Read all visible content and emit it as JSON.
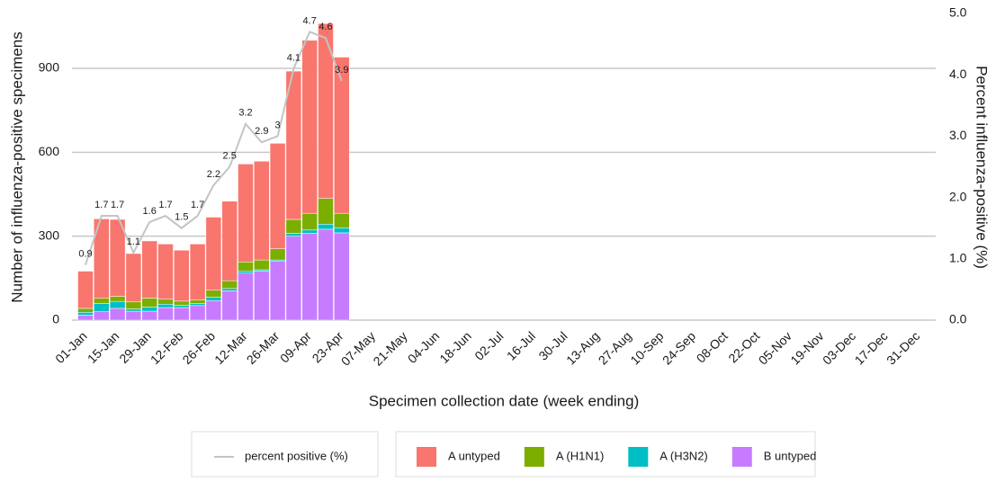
{
  "chart_data": {
    "type": "bar",
    "x_label": "Specimen collection date (week ending)",
    "y_label": "Number of influenza-positive specimens",
    "y2_label": "Percent influenza-positive (%)",
    "categories": [
      "01-Jan",
      null,
      "15-Jan",
      null,
      "29-Jan",
      null,
      "12-Feb",
      null,
      "26-Feb",
      null,
      "12-Mar",
      null,
      "26-Mar",
      null,
      "09-Apr",
      null,
      "23-Apr",
      null,
      "07-May",
      null,
      "21-May",
      null,
      "04-Jun",
      null,
      "18-Jun",
      null,
      "02-Jul",
      null,
      "16-Jul",
      null,
      "30-Jul",
      null,
      "13-Aug",
      null,
      "27-Aug",
      null,
      "10-Sep",
      null,
      "24-Sep",
      null,
      "08-Oct",
      null,
      "22-Oct",
      null,
      "05-Nov",
      null,
      "19-Nov",
      null,
      "03-Dec",
      null,
      "17-Dec",
      null,
      "31-Dec"
    ],
    "series": [
      {
        "name": "percent positive (%)",
        "type": "line",
        "axis": "y2",
        "color": "#c4c4c4",
        "values": [
          0.9,
          1.7,
          1.7,
          1.1,
          1.6,
          1.7,
          1.5,
          1.7,
          2.2,
          2.5,
          3.2,
          2.9,
          3,
          4.1,
          4.7,
          4.6,
          3.9,
          null,
          null,
          null,
          null,
          null,
          null,
          null,
          null,
          null,
          null,
          null,
          null,
          null,
          null,
          null,
          null,
          null,
          null,
          null,
          null,
          null,
          null,
          null,
          null,
          null,
          null,
          null,
          null,
          null,
          null,
          null,
          null,
          null,
          null,
          null,
          null
        ]
      },
      {
        "name": "A untyped",
        "color": "#f8766d",
        "values": [
          133,
          284,
          275,
          173,
          204,
          197,
          182,
          200,
          261,
          284,
          350,
          353,
          377,
          530,
          618,
          625,
          558,
          null,
          null,
          null,
          null,
          null,
          null,
          null,
          null,
          null,
          null,
          null,
          null,
          null,
          null,
          null,
          null,
          null,
          null,
          null,
          null,
          null,
          null,
          null,
          null,
          null,
          null,
          null,
          null,
          null,
          null,
          null,
          null,
          null,
          null,
          null,
          null
        ]
      },
      {
        "name": "A (H1N1)",
        "color": "#7cae00",
        "values": [
          14,
          18,
          18,
          25,
          32,
          18,
          15,
          12,
          25,
          28,
          32,
          35,
          40,
          50,
          60,
          92,
          52,
          null,
          null,
          null,
          null,
          null,
          null,
          null,
          null,
          null,
          null,
          null,
          null,
          null,
          null,
          null,
          null,
          null,
          null,
          null,
          null,
          null,
          null,
          null,
          null,
          null,
          null,
          null,
          null,
          null,
          null,
          null,
          null,
          null,
          null,
          null,
          null
        ]
      },
      {
        "name": "A (H3N2)",
        "color": "#00bfc4",
        "values": [
          10,
          30,
          25,
          8,
          15,
          12,
          8,
          8,
          12,
          8,
          8,
          5,
          5,
          10,
          12,
          18,
          18,
          null,
          null,
          null,
          null,
          null,
          null,
          null,
          null,
          null,
          null,
          null,
          null,
          null,
          null,
          null,
          null,
          null,
          null,
          null,
          null,
          null,
          null,
          null,
          null,
          null,
          null,
          null,
          null,
          null,
          null,
          null,
          null,
          null,
          null,
          null,
          null
        ]
      },
      {
        "name": "B untyped",
        "color": "#c77cff",
        "values": [
          18,
          30,
          42,
          32,
          32,
          45,
          45,
          52,
          70,
          105,
          168,
          175,
          210,
          300,
          310,
          325,
          312,
          null,
          null,
          null,
          null,
          null,
          null,
          null,
          null,
          null,
          null,
          null,
          null,
          null,
          null,
          null,
          null,
          null,
          null,
          null,
          null,
          null,
          null,
          null,
          null,
          null,
          null,
          null,
          null,
          null,
          null,
          null,
          null,
          null,
          null,
          null,
          null
        ]
      }
    ],
    "stacked": true,
    "ylim": [
      0,
      1096
    ],
    "yticks": [
      0,
      300,
      600,
      900
    ],
    "y2lim": [
      0,
      5
    ],
    "y2ticks": [
      {
        "value": 0,
        "label": "0.0"
      },
      {
        "value": 1,
        "label": "1.0"
      },
      {
        "value": 2,
        "label": "2.0"
      },
      {
        "value": 3,
        "label": "3.0"
      },
      {
        "value": 4,
        "label": "4.0"
      },
      {
        "value": 5,
        "label": "5.0"
      }
    ],
    "grid": true
  }
}
